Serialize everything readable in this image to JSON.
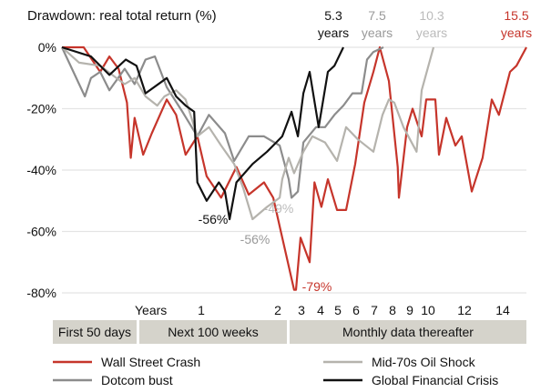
{
  "chart_data": {
    "type": "line",
    "title": "Drawdown: real total return (%)",
    "xlabel": "Years",
    "ylim": [
      -80,
      0
    ],
    "y_ticks": [
      {
        "value": 0,
        "label": "0%"
      },
      {
        "value": -20,
        "label": "-20%"
      },
      {
        "value": -40,
        "label": "-40%"
      },
      {
        "value": -60,
        "label": "-60%"
      },
      {
        "value": -80,
        "label": "-80%"
      }
    ],
    "x_ticks": [
      {
        "value": 1,
        "label": "1"
      },
      {
        "value": 2,
        "label": "2"
      },
      {
        "value": 3,
        "label": "3"
      },
      {
        "value": 4,
        "label": "4"
      },
      {
        "value": 5,
        "label": "5"
      },
      {
        "value": 6,
        "label": "6"
      },
      {
        "value": 7,
        "label": "7"
      },
      {
        "value": 8,
        "label": "8"
      },
      {
        "value": 9,
        "label": "9"
      },
      {
        "value": 10,
        "label": "10"
      },
      {
        "value": 12,
        "label": "12"
      },
      {
        "value": 14,
        "label": "14"
      }
    ],
    "x_scale_note": "nonlinear (daily, weekly, then monthly)",
    "segments": [
      {
        "label": "First 50 days"
      },
      {
        "label": "Next 100 weeks"
      },
      {
        "label": "Monthly data thereafter"
      }
    ],
    "grid": true,
    "legend_position": "bottom",
    "series": [
      {
        "name": "Wall Street Crash",
        "color": "#c6352b",
        "x": [
          0,
          0.057,
          0.1,
          0.124,
          0.148,
          0.17,
          0.18,
          0.19,
          0.26,
          0.37,
          0.56,
          0.68,
          0.8,
          0.95,
          1.07,
          1.26,
          1.46,
          1.62,
          1.82,
          1.94,
          2.19,
          2.69,
          2.77,
          2.96,
          3.43,
          3.68,
          4.05,
          4.42,
          4.95,
          5.45,
          5.95,
          6.45,
          6.95,
          7.3,
          7.8,
          8.3,
          8.37,
          8.84,
          9.15,
          9.65,
          9.9,
          10.4,
          10.6,
          11,
          11.5,
          11.85,
          12.38,
          12.95,
          13.43,
          13.8,
          14.46,
          14.87,
          15.5
        ],
        "y": [
          0,
          0,
          -8,
          -3,
          -7,
          -18,
          -36,
          -23,
          -35,
          -28,
          -17,
          -22,
          -35,
          -29,
          -42,
          -49,
          -39,
          -48,
          -44,
          -49,
          -62,
          -79,
          -79,
          -62,
          -70,
          -44,
          -52,
          -43,
          -53,
          -53,
          -38,
          -18,
          -8,
          0,
          -11,
          -39,
          -49,
          -26,
          -20,
          -29,
          -17,
          -17,
          -35,
          -23,
          -32,
          -29,
          -47,
          -36,
          -17,
          -22,
          -8,
          -6,
          0
        ]
      },
      {
        "name": "Dotcom  bust",
        "color": "#8c8c8c",
        "x": [
          0,
          0.06,
          0.076,
          0.1,
          0.124,
          0.164,
          0.19,
          0.29,
          0.41,
          0.56,
          0.76,
          0.95,
          1.1,
          1.31,
          1.43,
          1.62,
          1.82,
          2.08,
          2.46,
          2.58,
          2.85,
          3.1,
          3.76,
          4.26,
          4.8,
          5.3,
          5.8,
          6.3,
          6.6,
          6.95,
          7.5
        ],
        "y": [
          0,
          -16,
          -10,
          -8,
          -14,
          -7,
          -12,
          -4,
          -3,
          -13,
          -21,
          -29,
          -22,
          -28,
          -37,
          -29,
          -29,
          -32,
          -43,
          -49,
          -47,
          -31,
          -26,
          -26,
          -22,
          -19,
          -15,
          -15,
          -4,
          -1.5,
          0
        ]
      },
      {
        "name": "Mid-70s Oil Shock",
        "color": "#b5b3ad",
        "x": [
          0,
          0.045,
          0.1,
          0.164,
          0.19,
          0.29,
          0.44,
          0.53,
          0.68,
          0.8,
          0.95,
          1.1,
          1.26,
          1.43,
          1.55,
          1.67,
          1.86,
          2.08,
          2.19,
          2.46,
          2.69,
          3.1,
          3.57,
          4.26,
          4.95,
          5.45,
          6.1,
          6.95,
          7.45,
          7.8,
          8.1,
          8.63,
          9.37,
          9.65,
          10.3
        ],
        "y": [
          0,
          -5,
          -6,
          -12,
          -10,
          -16,
          -19,
          -16,
          -14,
          -17,
          -29,
          -26,
          -32,
          -38,
          -46,
          -56,
          -52,
          -49,
          -43,
          -36,
          -41,
          -34,
          -29,
          -31,
          -37,
          -26,
          -30,
          -34,
          -22,
          -17,
          -18,
          -26,
          -34,
          -14,
          0
        ]
      },
      {
        "name": "Global Financial Crisis",
        "color": "#111111",
        "x": [
          0,
          0.076,
          0.124,
          0.167,
          0.195,
          0.29,
          0.56,
          0.68,
          0.8,
          0.91,
          0.95,
          1.07,
          1.23,
          1.31,
          1.37,
          1.46,
          1.67,
          1.86,
          1.98,
          2.19,
          2.58,
          2.85,
          3.1,
          3.43,
          3.9,
          4.42,
          4.8,
          5.3
        ],
        "y": [
          0,
          -3,
          -9,
          -4,
          -6,
          -15,
          -10,
          -16,
          -19,
          -21,
          -44,
          -50,
          -44,
          -47,
          -56,
          -44,
          -38,
          -34,
          -31,
          -29,
          -21,
          -29,
          -15,
          -8,
          -26,
          -8,
          -6,
          0
        ]
      }
    ],
    "annotations": [
      {
        "text": "-56%",
        "series": "Global Financial Crisis",
        "color": "#111111"
      },
      {
        "text": "-56%",
        "series": "Mid-70s Oil Shock",
        "color": "#999999"
      },
      {
        "text": "-49%",
        "series": "Dotcom  bust",
        "color": "#bbbbbb"
      },
      {
        "text": "-79%",
        "series": "Wall Street Crash",
        "color": "#c6352b"
      }
    ],
    "recovery_labels": [
      {
        "value": "5.3",
        "unit": "years",
        "color": "#111111"
      },
      {
        "value": "7.5",
        "unit": "years",
        "color": "#999999"
      },
      {
        "value": "10.3",
        "unit": "years",
        "color": "#bbbbbb"
      },
      {
        "value": "15.5",
        "unit": "years",
        "color": "#c6352b"
      }
    ]
  }
}
